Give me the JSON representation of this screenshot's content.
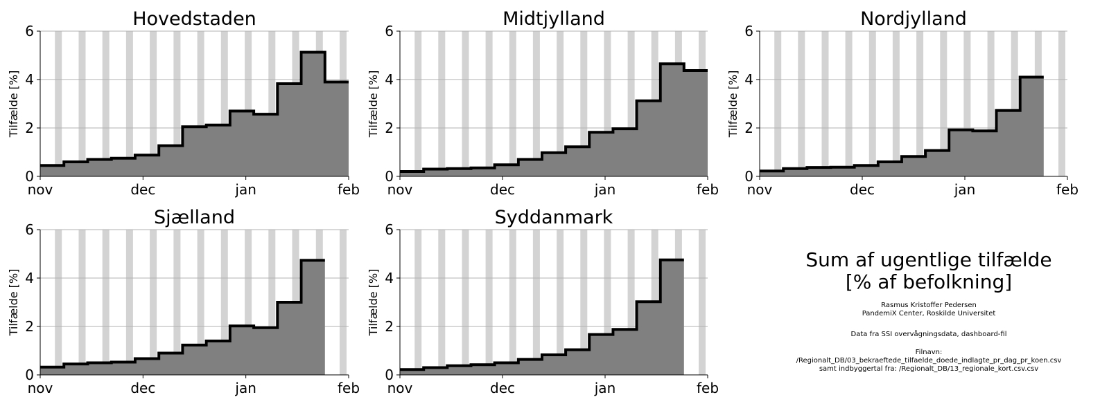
{
  "chart_data": [
    {
      "type": "area",
      "title": "Hovedstaden",
      "ylabel": "Tilfælde [%]",
      "xlabel": "",
      "ylim": [
        0,
        6
      ],
      "yticks": [
        0,
        2,
        4,
        6
      ],
      "xticks": [
        "nov",
        "dec",
        "jan",
        "feb"
      ],
      "grid": "horizontal",
      "values": [
        0.45,
        0.6,
        0.7,
        0.75,
        0.88,
        1.27,
        2.05,
        2.12,
        2.7,
        2.57,
        3.83,
        5.13,
        3.9
      ]
    },
    {
      "type": "area",
      "title": "Midtjylland",
      "ylabel": "Tilfælde [%]",
      "xlabel": "",
      "ylim": [
        0,
        6
      ],
      "yticks": [
        0,
        2,
        4,
        6
      ],
      "xticks": [
        "nov",
        "dec",
        "jan",
        "feb"
      ],
      "grid": "horizontal",
      "values": [
        0.2,
        0.3,
        0.32,
        0.35,
        0.48,
        0.7,
        0.98,
        1.22,
        1.82,
        1.97,
        3.12,
        4.65,
        4.37
      ]
    },
    {
      "type": "area",
      "title": "Nordjylland",
      "ylabel": "Tilfælde [%]",
      "xlabel": "",
      "ylim": [
        0,
        6
      ],
      "yticks": [
        0,
        2,
        4,
        6
      ],
      "xticks": [
        "nov",
        "dec",
        "jan",
        "feb"
      ],
      "grid": "horizontal",
      "values": [
        0.22,
        0.32,
        0.37,
        0.38,
        0.45,
        0.6,
        0.82,
        1.07,
        1.92,
        1.88,
        2.72,
        4.1
      ]
    },
    {
      "type": "area",
      "title": "Sjælland",
      "ylabel": "Tilfælde [%]",
      "xlabel": "",
      "ylim": [
        0,
        6
      ],
      "yticks": [
        0,
        2,
        4,
        6
      ],
      "xticks": [
        "nov",
        "dec",
        "jan",
        "feb"
      ],
      "grid": "horizontal",
      "values": [
        0.32,
        0.45,
        0.5,
        0.53,
        0.67,
        0.9,
        1.23,
        1.4,
        2.02,
        1.95,
        3.0,
        4.73
      ]
    },
    {
      "type": "area",
      "title": "Syddanmark",
      "ylabel": "Tilfælde [%]",
      "xlabel": "",
      "ylim": [
        0,
        6
      ],
      "yticks": [
        0,
        2,
        4,
        6
      ],
      "xticks": [
        "nov",
        "dec",
        "jan",
        "feb"
      ],
      "grid": "horizontal",
      "values": [
        0.22,
        0.3,
        0.38,
        0.42,
        0.5,
        0.64,
        0.83,
        1.04,
        1.67,
        1.88,
        3.02,
        4.75
      ]
    }
  ],
  "style": {
    "fill_color": "#808080",
    "line_color": "#000000",
    "band_color": "#d3d3d3",
    "grid_color": "#b0b0b0"
  },
  "info": {
    "title_line1": "Sum af ugentlige tilfælde",
    "title_line2": "[% af befolkning]",
    "author": "Rasmus Kristoffer Pedersen",
    "affiliation": "PandemiX Center, Roskilde Universitet",
    "source": "Data fra SSI overvågningsdata, dashboard-fil",
    "filename_label": "Filnavn:",
    "filename": "/Regionalt_DB/03_bekraeftede_tilfaelde_doede_indlagte_pr_dag_pr_koen.csv",
    "population": "samt indbyggertal fra: /Regionalt_DB/13_regionale_kort.csv.csv"
  }
}
